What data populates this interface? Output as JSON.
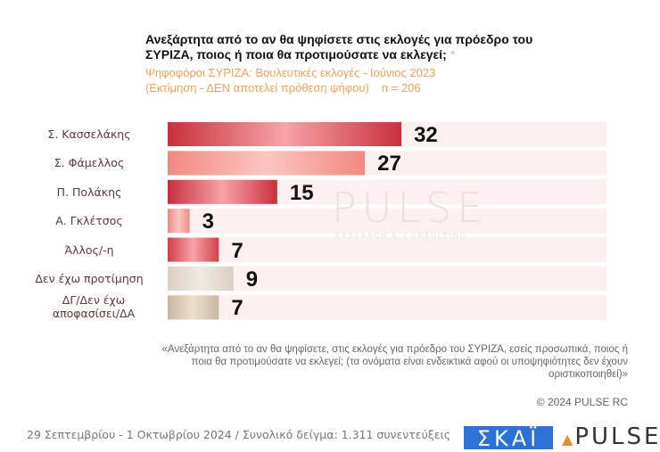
{
  "header": {
    "title": "Ανεξάρτητα από το αν θα ψηφίσετε στις εκλογές για πρόεδρο του ΣΥΡΙΖΑ, ποιος ή ποια θα προτιμούσατε να εκλεγεί;",
    "asterisk": "*",
    "subtitle_line1": "Ψηφοφόροι ΣΥΡΙΖΑ: Βουλευτικές εκλογές - Ιούνιος 2023",
    "subtitle_line2": "(Εκτίμηση - ΔΕΝ αποτελεί πρόθεση ψήφου)",
    "sample": "n = 206"
  },
  "watermark": {
    "main": "PULSE",
    "sub": "RESEARCH & CONSULTING"
  },
  "chart_data": {
    "type": "bar",
    "orientation": "horizontal",
    "title": "Ανεξάρτητα από το αν θα ψηφίσετε στις εκλογές για πρόεδρο του ΣΥΡΙΖΑ, ποιος ή ποια θα προτιμούσατε να εκλεγεί;",
    "subtitle": "Ψηφοφόροι ΣΥΡΙΖΑ: Βουλευτικές εκλογές - Ιούνιος 2023 (Εκτίμηση - ΔΕΝ αποτελεί πρόθεση ψήφου) n = 206",
    "categories": [
      "Σ. Κασσελάκης",
      "Σ. Φάμελλος",
      "Π. Πολάκης",
      "Α. Γκλέτσος",
      "Άλλος/-η",
      "Δεν έχω προτίμηση",
      "ΔΓ/Δεν έχω αποφασίσει/ΔΑ"
    ],
    "values": [
      32,
      27,
      15,
      3,
      7,
      9,
      7
    ],
    "colors": [
      "#c8303c",
      "#f08a80",
      "#c8303c",
      "#f08a80",
      "#d0404a",
      "#d8d0c4",
      "#c8b8a4"
    ],
    "highlight_colors": [
      "#f7a3a8",
      "#fcc6c0",
      "#f7a3a8",
      "#fcc6c0",
      "#f7a3a8",
      "#f0ebe0",
      "#ebe0cc"
    ],
    "track_color": "#fdf0f0",
    "xlim": [
      0,
      60
    ],
    "xlabel": "",
    "ylabel": "",
    "grid": false,
    "legend": "none"
  },
  "footer": {
    "quote": "«Ανεξάρτητα από το αν θα ψηφίσετε, στις εκλογές για πρόεδρο του ΣΥΡΙΖΑ, εσείς προσωπικά, ποιος ή ποια θα προτιμούσατε να εκλεγεί; (τα ονόματα είναι ενδεικτικά αφού οι υποψηφιότητες δεν έχουν οριστικοποιηθεί)»",
    "copyright": "© 2024 PULSE RC",
    "fieldwork": "29 Σεπτεμβρίου - 1 Οκτωβρίου 2024  /  Συνολικό δείγμα:  1.311 συνεντεύξεις",
    "skai_logo": "ΣΚΑΪ",
    "pulse_logo": "PULSE"
  }
}
